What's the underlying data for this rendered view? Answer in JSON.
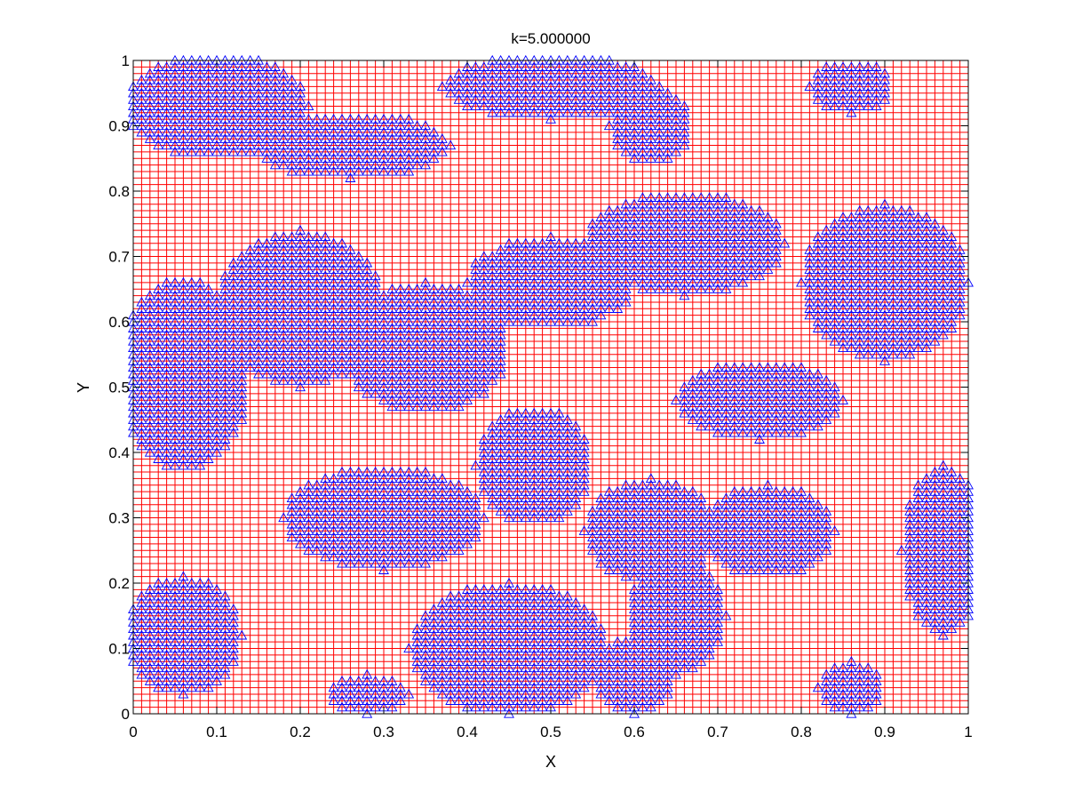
{
  "chart_data": {
    "type": "scatter",
    "title": "k=5.000000",
    "xlabel": "X",
    "ylabel": "Y",
    "xlim": [
      0,
      1
    ],
    "ylim": [
      0,
      1
    ],
    "xticks": [
      0,
      0.1,
      0.2,
      0.3,
      0.4,
      0.5,
      0.6,
      0.7,
      0.8,
      0.9,
      1
    ],
    "yticks": [
      0,
      0.1,
      0.2,
      0.3,
      0.4,
      0.5,
      0.6,
      0.7,
      0.8,
      0.9,
      1
    ],
    "grid": true,
    "grid_step": 0.01,
    "grid_color": "#ff0000",
    "marker": "triangle",
    "marker_color": "#0000ff",
    "occupied_regions": [
      {
        "cx": 0.1,
        "cy": 0.93,
        "rx": 0.11,
        "ry": 0.08
      },
      {
        "cx": 0.26,
        "cy": 0.87,
        "rx": 0.12,
        "ry": 0.05
      },
      {
        "cx": 0.5,
        "cy": 0.96,
        "rx": 0.13,
        "ry": 0.05
      },
      {
        "cx": 0.62,
        "cy": 0.9,
        "rx": 0.05,
        "ry": 0.06
      },
      {
        "cx": 0.86,
        "cy": 0.96,
        "rx": 0.05,
        "ry": 0.04
      },
      {
        "cx": 0.06,
        "cy": 0.52,
        "rx": 0.08,
        "ry": 0.15
      },
      {
        "cx": 0.2,
        "cy": 0.62,
        "rx": 0.1,
        "ry": 0.12
      },
      {
        "cx": 0.35,
        "cy": 0.56,
        "rx": 0.1,
        "ry": 0.1
      },
      {
        "cx": 0.5,
        "cy": 0.66,
        "rx": 0.1,
        "ry": 0.07
      },
      {
        "cx": 0.66,
        "cy": 0.72,
        "rx": 0.12,
        "ry": 0.08
      },
      {
        "cx": 0.9,
        "cy": 0.66,
        "rx": 0.1,
        "ry": 0.12
      },
      {
        "cx": 0.75,
        "cy": 0.48,
        "rx": 0.1,
        "ry": 0.06
      },
      {
        "cx": 0.48,
        "cy": 0.38,
        "rx": 0.07,
        "ry": 0.09
      },
      {
        "cx": 0.3,
        "cy": 0.3,
        "rx": 0.12,
        "ry": 0.08
      },
      {
        "cx": 0.62,
        "cy": 0.28,
        "rx": 0.08,
        "ry": 0.08
      },
      {
        "cx": 0.76,
        "cy": 0.28,
        "rx": 0.08,
        "ry": 0.07
      },
      {
        "cx": 0.97,
        "cy": 0.25,
        "rx": 0.05,
        "ry": 0.13
      },
      {
        "cx": 0.06,
        "cy": 0.12,
        "rx": 0.07,
        "ry": 0.09
      },
      {
        "cx": 0.45,
        "cy": 0.1,
        "rx": 0.12,
        "ry": 0.1
      },
      {
        "cx": 0.6,
        "cy": 0.06,
        "rx": 0.05,
        "ry": 0.06
      },
      {
        "cx": 0.65,
        "cy": 0.15,
        "rx": 0.06,
        "ry": 0.09
      },
      {
        "cx": 0.86,
        "cy": 0.04,
        "rx": 0.04,
        "ry": 0.04
      },
      {
        "cx": 0.28,
        "cy": 0.03,
        "rx": 0.05,
        "ry": 0.03
      }
    ]
  }
}
